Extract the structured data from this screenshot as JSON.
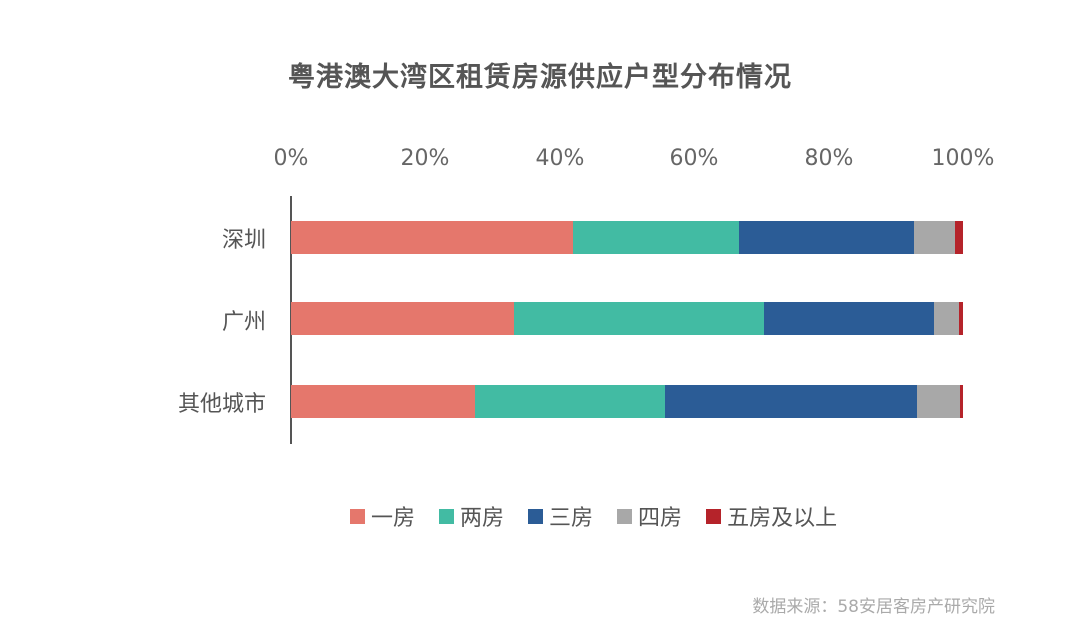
{
  "chart_data": {
    "type": "bar",
    "orientation": "horizontal",
    "stacked": true,
    "percent": true,
    "title": "粤港澳大湾区租赁房源供应户型分布情况",
    "xlabel": "",
    "ylabel": "",
    "xlim": [
      0,
      100
    ],
    "x_ticks": [
      "0%",
      "20%",
      "40%",
      "60%",
      "80%",
      "100%"
    ],
    "x_axis_position": "top",
    "grid": false,
    "legend_position": "bottom",
    "categories": [
      "深圳",
      "广州",
      "其他城市"
    ],
    "series": [
      {
        "name": "一房",
        "color": "#E5776C",
        "values": [
          42.0,
          33.2,
          27.4
        ]
      },
      {
        "name": "两房",
        "color": "#42BBA3",
        "values": [
          24.7,
          37.2,
          28.3
        ]
      },
      {
        "name": "三房",
        "color": "#2B5C96",
        "values": [
          26.0,
          25.3,
          37.4
        ]
      },
      {
        "name": "四房",
        "color": "#A8A8A8",
        "values": [
          6.1,
          3.7,
          6.5
        ]
      },
      {
        "name": "五房及以上",
        "color": "#B5232A",
        "values": [
          1.2,
          0.6,
          0.4
        ]
      }
    ],
    "source": "数据来源：58安居客房产研究院"
  },
  "title": "粤港澳大湾区租赁房源供应户型分布情况",
  "ticks": [
    "0%",
    "20%",
    "40%",
    "60%",
    "80%",
    "100%"
  ],
  "categories": [
    "深圳",
    "广州",
    "其他城市"
  ],
  "legend": [
    "一房",
    "两房",
    "三房",
    "四房",
    "五房及以上"
  ],
  "source": "数据来源：58安居客房产研究院"
}
